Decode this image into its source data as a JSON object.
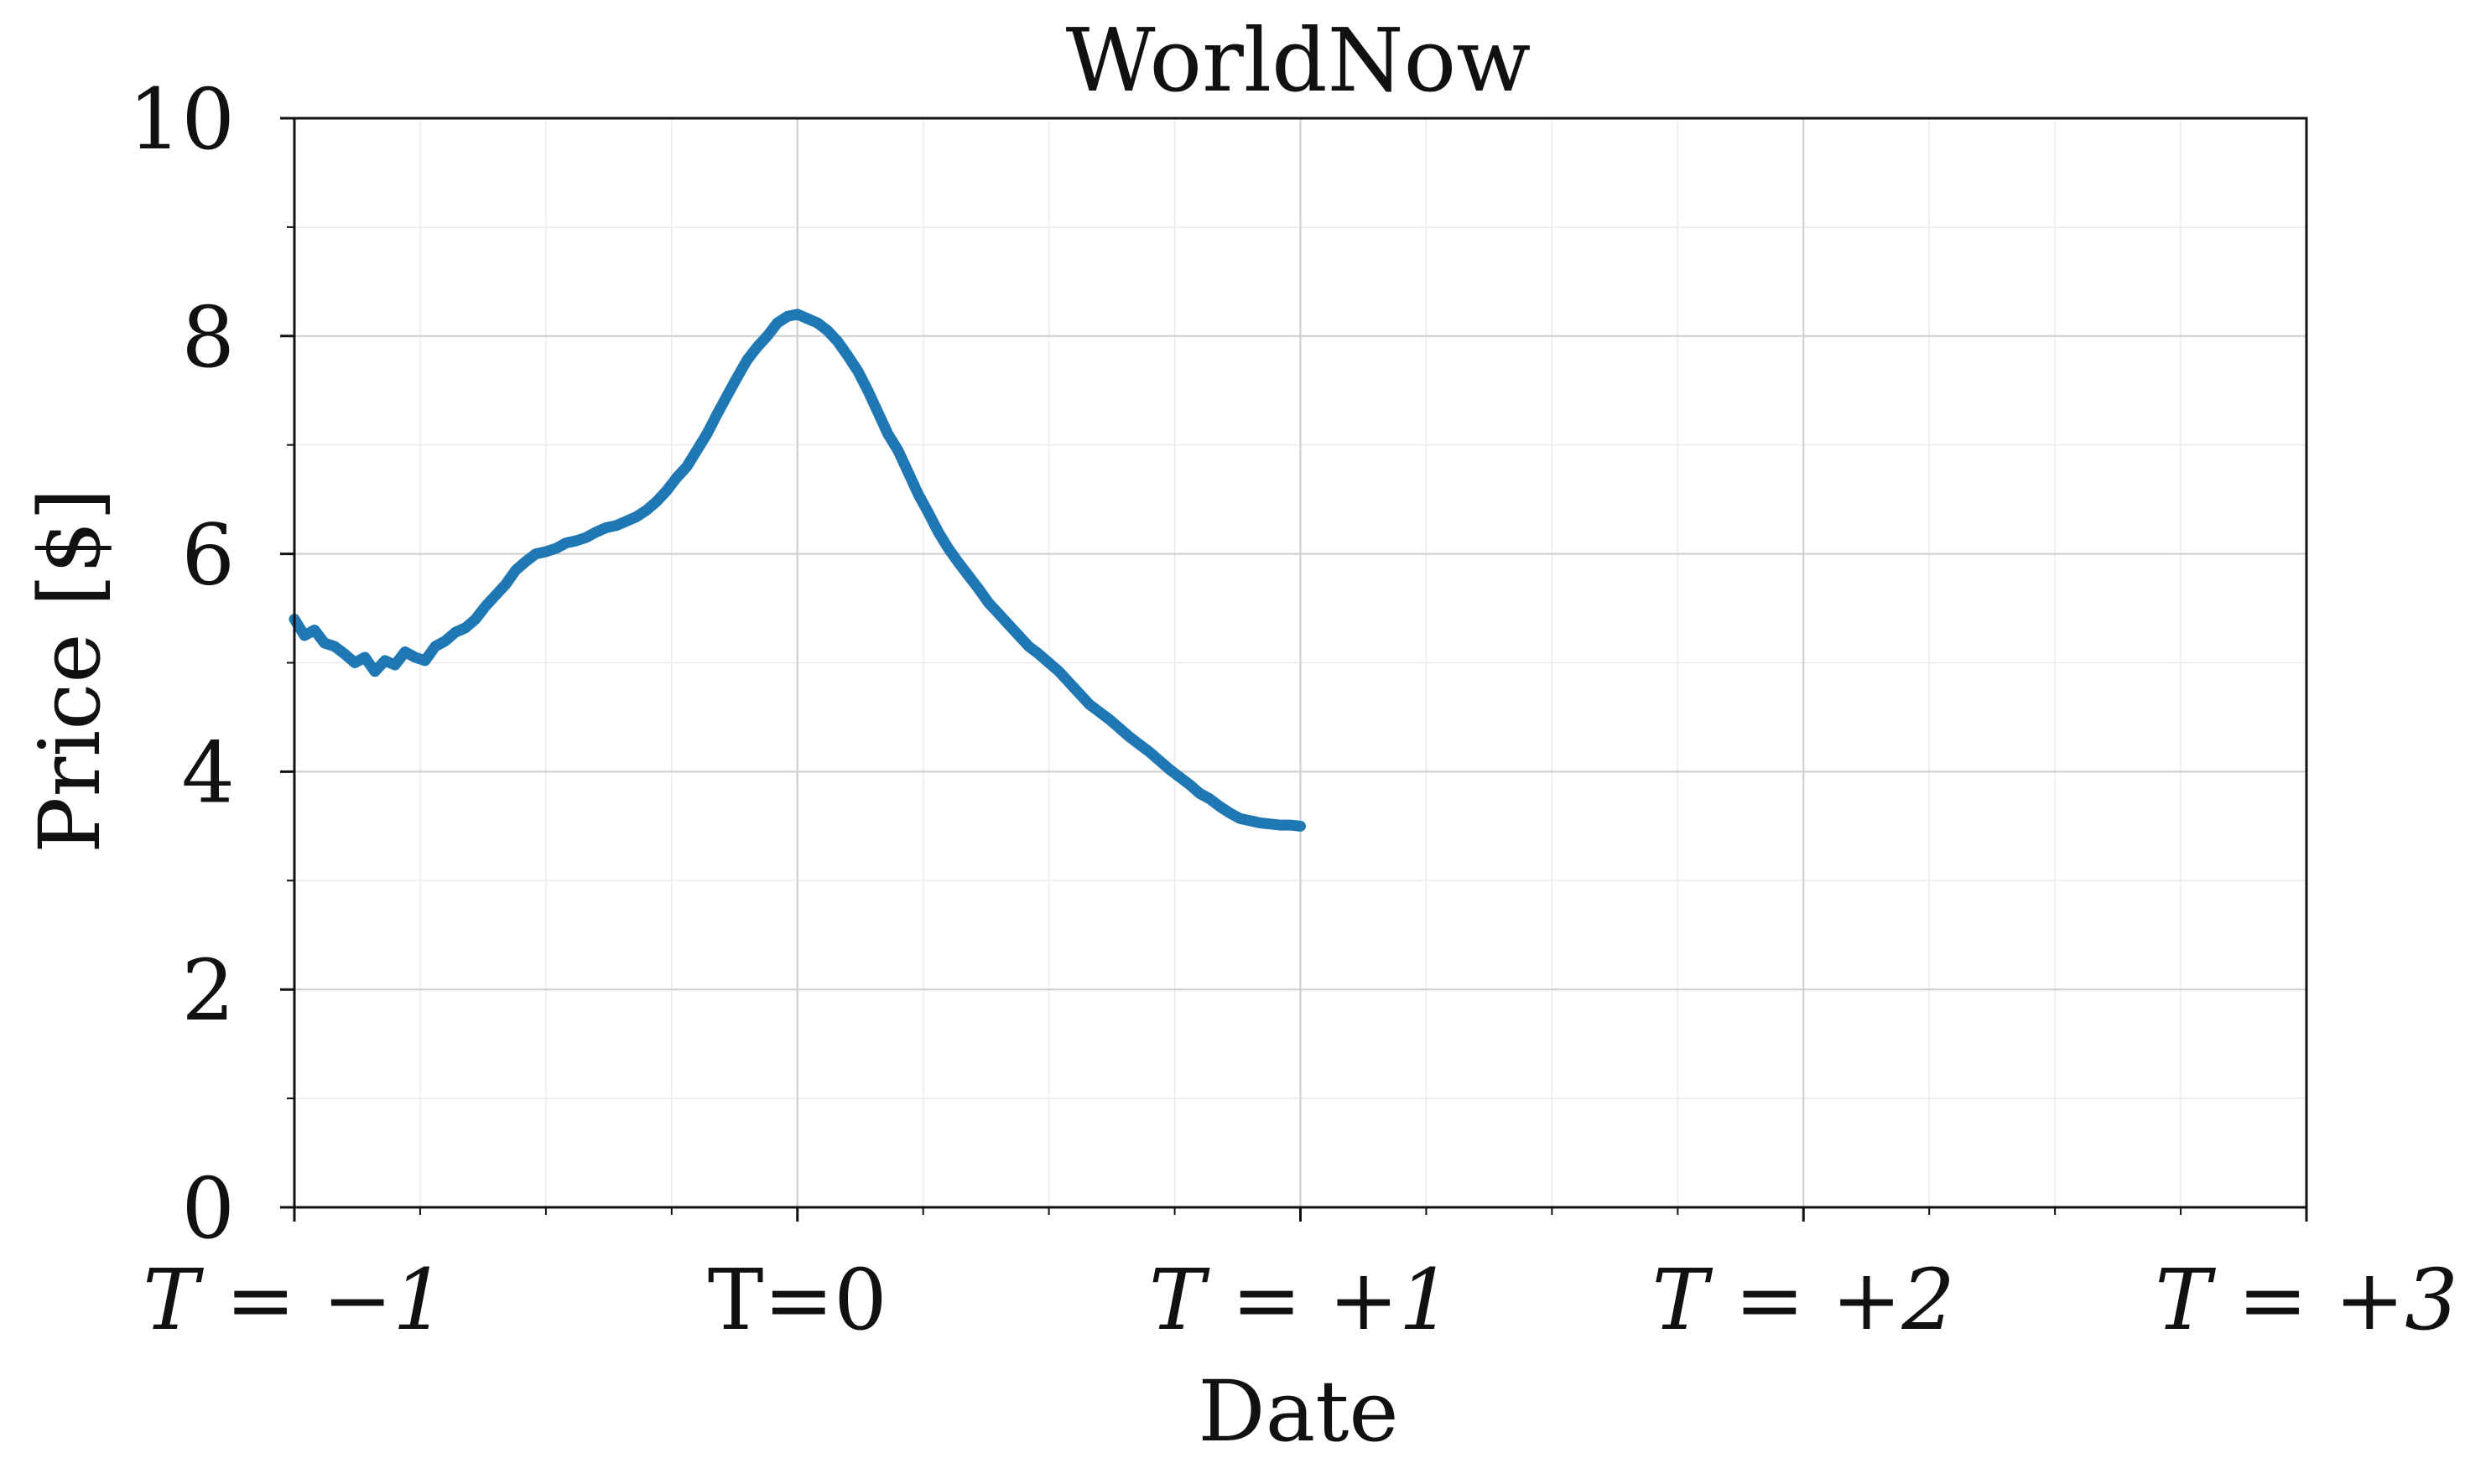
{
  "chart_data": {
    "type": "line",
    "title": "WorldNow",
    "xlabel": "Date",
    "ylabel": "Price [$]",
    "xlim": [
      -1,
      3
    ],
    "ylim": [
      0,
      10
    ],
    "x_ticks": [
      {
        "value": -1,
        "label": "T = −1",
        "italic": true
      },
      {
        "value": 0,
        "label": "T=0",
        "italic": false
      },
      {
        "value": 1,
        "label": "T = +1",
        "italic": true
      },
      {
        "value": 2,
        "label": "T = +2",
        "italic": true
      },
      {
        "value": 3,
        "label": "T = +3",
        "italic": true
      }
    ],
    "y_ticks": [
      {
        "value": 0,
        "label": "0"
      },
      {
        "value": 2,
        "label": "2"
      },
      {
        "value": 4,
        "label": "4"
      },
      {
        "value": 6,
        "label": "6"
      },
      {
        "value": 8,
        "label": "8"
      },
      {
        "value": 10,
        "label": "10"
      }
    ],
    "x_minor_step": 0.25,
    "y_minor_step": 1,
    "grid": true,
    "legend": "none",
    "series": [
      {
        "color": "#1f77b4",
        "x": [
          -1.0,
          -0.98,
          -0.96,
          -0.94,
          -0.92,
          -0.9,
          -0.88,
          -0.86,
          -0.84,
          -0.82,
          -0.8,
          -0.78,
          -0.76,
          -0.74,
          -0.72,
          -0.7,
          -0.68,
          -0.66,
          -0.64,
          -0.62,
          -0.6,
          -0.58,
          -0.56,
          -0.54,
          -0.52,
          -0.5,
          -0.48,
          -0.46,
          -0.44,
          -0.42,
          -0.4,
          -0.38,
          -0.36,
          -0.34,
          -0.32,
          -0.3,
          -0.28,
          -0.26,
          -0.24,
          -0.22,
          -0.2,
          -0.18,
          -0.16,
          -0.14,
          -0.12,
          -0.1,
          -0.08,
          -0.06,
          -0.04,
          -0.02,
          0.0,
          0.02,
          0.04,
          0.06,
          0.08,
          0.1,
          0.12,
          0.14,
          0.16,
          0.18,
          0.2,
          0.22,
          0.24,
          0.26,
          0.28,
          0.3,
          0.32,
          0.34,
          0.36,
          0.38,
          0.4,
          0.42,
          0.44,
          0.46,
          0.48,
          0.5,
          0.52,
          0.54,
          0.56,
          0.58,
          0.6,
          0.62,
          0.64,
          0.66,
          0.68,
          0.7,
          0.72,
          0.74,
          0.76,
          0.78,
          0.8,
          0.82,
          0.84,
          0.86,
          0.88,
          0.9,
          0.92,
          0.94,
          0.96,
          0.98,
          1.0
        ],
        "y": [
          5.4,
          5.25,
          5.3,
          5.18,
          5.15,
          5.08,
          5.0,
          5.05,
          4.92,
          5.02,
          4.98,
          5.1,
          5.05,
          5.02,
          5.15,
          5.2,
          5.28,
          5.32,
          5.4,
          5.52,
          5.62,
          5.72,
          5.85,
          5.93,
          6.0,
          6.02,
          6.05,
          6.1,
          6.12,
          6.15,
          6.2,
          6.24,
          6.26,
          6.3,
          6.34,
          6.4,
          6.48,
          6.58,
          6.7,
          6.8,
          6.95,
          7.1,
          7.28,
          7.45,
          7.62,
          7.78,
          7.9,
          8.0,
          8.12,
          8.18,
          8.2,
          8.16,
          8.12,
          8.05,
          7.95,
          7.82,
          7.68,
          7.5,
          7.3,
          7.1,
          6.95,
          6.75,
          6.55,
          6.38,
          6.2,
          6.05,
          5.92,
          5.8,
          5.68,
          5.55,
          5.45,
          5.35,
          5.25,
          5.15,
          5.08,
          5.0,
          4.92,
          4.82,
          4.72,
          4.62,
          4.55,
          4.48,
          4.4,
          4.32,
          4.25,
          4.18,
          4.1,
          4.02,
          3.95,
          3.88,
          3.8,
          3.75,
          3.68,
          3.62,
          3.57,
          3.55,
          3.53,
          3.52,
          3.51,
          3.51,
          3.5
        ]
      }
    ]
  }
}
